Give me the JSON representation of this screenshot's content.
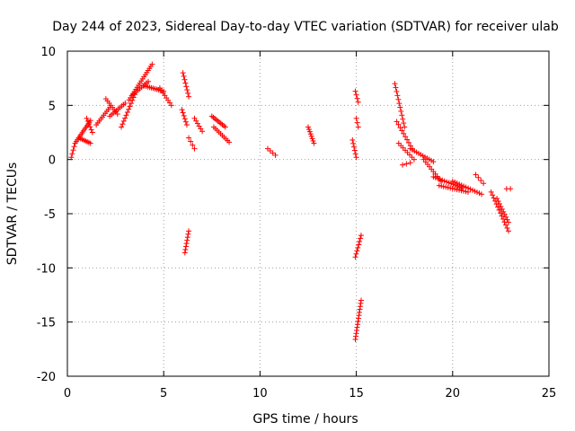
{
  "chart_data": {
    "type": "scatter",
    "title": "Day 244 of 2023, Sidereal Day-to-day VTEC variation (SDTVAR) for receiver ulab",
    "xlabel": "GPS time / hours",
    "ylabel": "SDTVAR / TECUs",
    "xlim": [
      0,
      25
    ],
    "ylim": [
      -20,
      10
    ],
    "xticks": [
      "0",
      "5",
      "10",
      "15",
      "20",
      "25"
    ],
    "yticks": [
      "10",
      "5",
      "0",
      "-5",
      "-10",
      "-15",
      "-20"
    ],
    "grid": true,
    "marker": "plus",
    "color": "#ff0000",
    "series": [
      {
        "name": "SDTVAR",
        "tracks": [
          {
            "x0": 0.2,
            "x1": 0.35,
            "y0": 0.2,
            "y1": 1.2,
            "n": 4
          },
          {
            "x0": 0.4,
            "x1": 1.2,
            "y0": 1.5,
            "y1": 3.6,
            "n": 14
          },
          {
            "x0": 0.6,
            "x1": 1.2,
            "y0": 2.0,
            "y1": 1.5,
            "n": 8
          },
          {
            "x0": 1.0,
            "x1": 1.3,
            "y0": 3.8,
            "y1": 2.5,
            "n": 6
          },
          {
            "x0": 1.5,
            "x1": 2.2,
            "y0": 3.2,
            "y1": 4.8,
            "n": 10
          },
          {
            "x0": 2.0,
            "x1": 2.6,
            "y0": 5.6,
            "y1": 4.2,
            "n": 8
          },
          {
            "x0": 2.2,
            "x1": 3.0,
            "y0": 4.0,
            "y1": 5.2,
            "n": 10
          },
          {
            "x0": 2.8,
            "x1": 3.5,
            "y0": 3.0,
            "y1": 6.0,
            "n": 12
          },
          {
            "x0": 3.2,
            "x1": 4.4,
            "y0": 5.5,
            "y1": 8.8,
            "n": 18
          },
          {
            "x0": 3.4,
            "x1": 4.2,
            "y0": 6.0,
            "y1": 7.2,
            "n": 10
          },
          {
            "x0": 4.0,
            "x1": 5.0,
            "y0": 6.8,
            "y1": 6.3,
            "n": 12
          },
          {
            "x0": 4.8,
            "x1": 5.4,
            "y0": 6.6,
            "y1": 5.0,
            "n": 8
          },
          {
            "x0": 6.0,
            "x1": 6.3,
            "y0": 8.0,
            "y1": 5.8,
            "n": 8
          },
          {
            "x0": 5.95,
            "x1": 6.2,
            "y0": 4.6,
            "y1": 3.2,
            "n": 6
          },
          {
            "x0": 6.1,
            "x1": 6.3,
            "y0": -8.6,
            "y1": -6.6,
            "n": 8
          },
          {
            "x0": 6.3,
            "x1": 6.6,
            "y0": 2.0,
            "y1": 1.0,
            "n": 4
          },
          {
            "x0": 6.6,
            "x1": 7.0,
            "y0": 3.8,
            "y1": 2.6,
            "n": 6
          },
          {
            "x0": 7.5,
            "x1": 8.2,
            "y0": 4.0,
            "y1": 3.0,
            "n": 10
          },
          {
            "x0": 7.6,
            "x1": 8.4,
            "y0": 3.0,
            "y1": 1.6,
            "n": 10
          },
          {
            "x0": 10.4,
            "x1": 10.8,
            "y0": 1.0,
            "y1": 0.4,
            "n": 4
          },
          {
            "x0": 12.5,
            "x1": 12.8,
            "y0": 3.0,
            "y1": 1.5,
            "n": 8
          },
          {
            "x0": 14.8,
            "x1": 15.0,
            "y0": 1.8,
            "y1": 0.2,
            "n": 6
          },
          {
            "x0": 14.95,
            "x1": 15.1,
            "y0": 6.3,
            "y1": 5.3,
            "n": 4
          },
          {
            "x0": 15.0,
            "x1": 15.1,
            "y0": 3.8,
            "y1": 3.0,
            "n": 3
          },
          {
            "x0": 14.95,
            "x1": 15.25,
            "y0": -9.0,
            "y1": -7.0,
            "n": 8
          },
          {
            "x0": 14.95,
            "x1": 15.25,
            "y0": -16.6,
            "y1": -13.0,
            "n": 14
          },
          {
            "x0": 17.0,
            "x1": 17.5,
            "y0": 7.0,
            "y1": 3.0,
            "n": 12
          },
          {
            "x0": 17.1,
            "x1": 17.9,
            "y0": 3.5,
            "y1": 1.0,
            "n": 10
          },
          {
            "x0": 17.2,
            "x1": 18.0,
            "y0": 1.5,
            "y1": 0.0,
            "n": 8
          },
          {
            "x0": 17.4,
            "x1": 17.8,
            "y0": -0.5,
            "y1": -0.3,
            "n": 3
          },
          {
            "x0": 17.8,
            "x1": 19.0,
            "y0": 1.0,
            "y1": -0.2,
            "n": 12
          },
          {
            "x0": 18.5,
            "x1": 19.4,
            "y0": 0.0,
            "y1": -2.0,
            "n": 10
          },
          {
            "x0": 19.0,
            "x1": 20.5,
            "y0": -1.6,
            "y1": -2.6,
            "n": 14
          },
          {
            "x0": 19.3,
            "x1": 20.8,
            "y0": -2.4,
            "y1": -3.0,
            "n": 14
          },
          {
            "x0": 20.0,
            "x1": 21.5,
            "y0": -2.0,
            "y1": -3.2,
            "n": 14
          },
          {
            "x0": 21.2,
            "x1": 21.6,
            "y0": -1.4,
            "y1": -2.2,
            "n": 4
          },
          {
            "x0": 22.0,
            "x1": 22.9,
            "y0": -3.0,
            "y1": -6.6,
            "n": 14
          },
          {
            "x0": 22.3,
            "x1": 22.9,
            "y0": -3.6,
            "y1": -5.8,
            "n": 10
          },
          {
            "x0": 22.8,
            "x1": 23.0,
            "y0": -2.7,
            "y1": -2.7,
            "n": 2
          }
        ]
      }
    ]
  }
}
